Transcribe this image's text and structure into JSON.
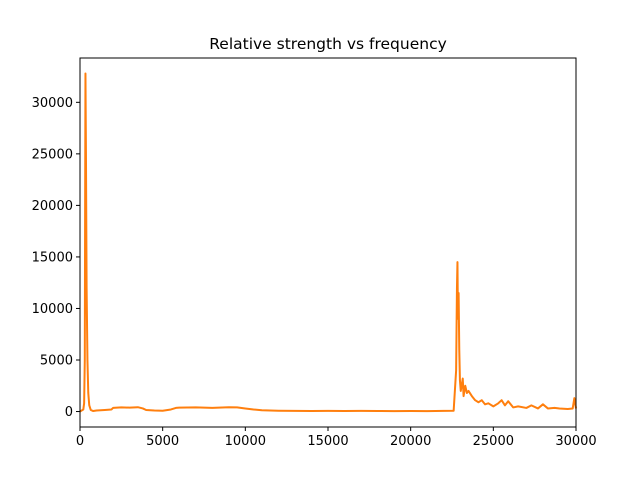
{
  "chart_data": {
    "type": "line",
    "title": "Relative strength vs frequency",
    "xlabel": "",
    "ylabel": "",
    "xlim": [
      0,
      30000
    ],
    "ylim": [
      -1500,
      34300
    ],
    "x_ticks": [
      0,
      5000,
      10000,
      15000,
      20000,
      25000,
      30000
    ],
    "y_ticks": [
      0,
      5000,
      10000,
      15000,
      20000,
      25000,
      30000
    ],
    "grid": false,
    "legend": "none",
    "series": [
      {
        "color": "#ff7f0e",
        "x": [
          0,
          200,
          250,
          290,
          310,
          330,
          360,
          400,
          450,
          500,
          560,
          650,
          800,
          1000,
          1500,
          1900,
          2000,
          2500,
          3000,
          3500,
          3800,
          4000,
          4500,
          5000,
          5500,
          5800,
          6000,
          7000,
          8000,
          9000,
          9500,
          10000,
          10500,
          11000,
          12000,
          13000,
          14000,
          15000,
          16000,
          17000,
          18000,
          19000,
          20000,
          21000,
          22000,
          22600,
          22750,
          22800,
          22830,
          22860,
          22900,
          22940,
          22980,
          23030,
          23080,
          23150,
          23200,
          23300,
          23400,
          23500,
          23700,
          23900,
          24100,
          24300,
          24500,
          24700,
          25000,
          25300,
          25500,
          25700,
          25900,
          26200,
          26500,
          27000,
          27300,
          27700,
          28000,
          28300,
          28700,
          29000,
          29500,
          29800,
          29900,
          30000
        ],
        "y": [
          0,
          200,
          800,
          5000,
          20000,
          32800,
          25000,
          12000,
          5000,
          1800,
          600,
          150,
          50,
          100,
          150,
          200,
          350,
          400,
          380,
          420,
          300,
          150,
          100,
          80,
          200,
          350,
          380,
          400,
          350,
          420,
          400,
          300,
          200,
          120,
          80,
          60,
          50,
          60,
          50,
          60,
          50,
          40,
          50,
          40,
          60,
          80,
          4000,
          12000,
          14500,
          9000,
          11500,
          6000,
          3000,
          2000,
          2500,
          3200,
          1500,
          2500,
          1800,
          2000,
          1500,
          1100,
          900,
          1100,
          700,
          800,
          500,
          800,
          1100,
          600,
          1000,
          400,
          500,
          350,
          600,
          300,
          700,
          300,
          350,
          300,
          250,
          300,
          1300,
          300
        ]
      }
    ]
  }
}
